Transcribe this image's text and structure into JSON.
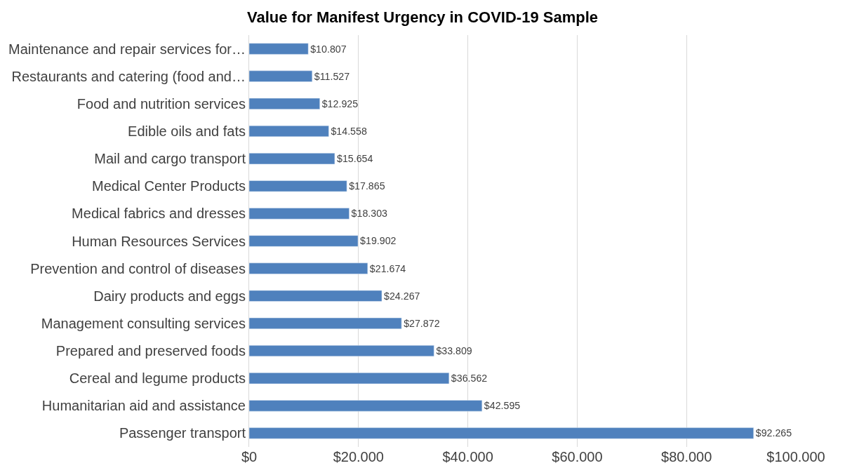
{
  "chart_data": {
    "type": "bar",
    "orientation": "horizontal",
    "title": "Value for Manifest Urgency in COVID-19 Sample",
    "categories": [
      "Maintenance and repair services for…",
      "Restaurants and catering (food and…",
      "Food and nutrition services",
      "Edible oils and fats",
      "Mail and cargo transport",
      "Medical Center Products",
      "Medical fabrics and dresses",
      "Human Resources Services",
      "Prevention and control of diseases",
      "Dairy products and eggs",
      "Management consulting services",
      "Prepared and preserved foods",
      "Cereal and legume products",
      "Humanitarian aid and assistance",
      "Passenger transport"
    ],
    "values": [
      10807,
      11527,
      12925,
      14558,
      15654,
      17865,
      18303,
      19902,
      21674,
      24267,
      27872,
      33809,
      36562,
      42595,
      92265
    ],
    "value_labels": [
      "$10.807",
      "$11.527",
      "$12.925",
      "$14.558",
      "$15.654",
      "$17.865",
      "$18.303",
      "$19.902",
      "$21.674",
      "$24.267",
      "$27.872",
      "$33.809",
      "$36.562",
      "$42.595",
      "$92.265"
    ],
    "color": "#4f81bd",
    "xlim": [
      0,
      100000
    ],
    "xticks": [
      {
        "value": 0,
        "label": "$0"
      },
      {
        "value": 20000,
        "label": "$20.000"
      },
      {
        "value": 40000,
        "label": "$40.000"
      },
      {
        "value": 60000,
        "label": "$60.000"
      },
      {
        "value": 80000,
        "label": "$80.000"
      },
      {
        "value": 100000,
        "label": "$100.000"
      }
    ],
    "grid": "x"
  }
}
